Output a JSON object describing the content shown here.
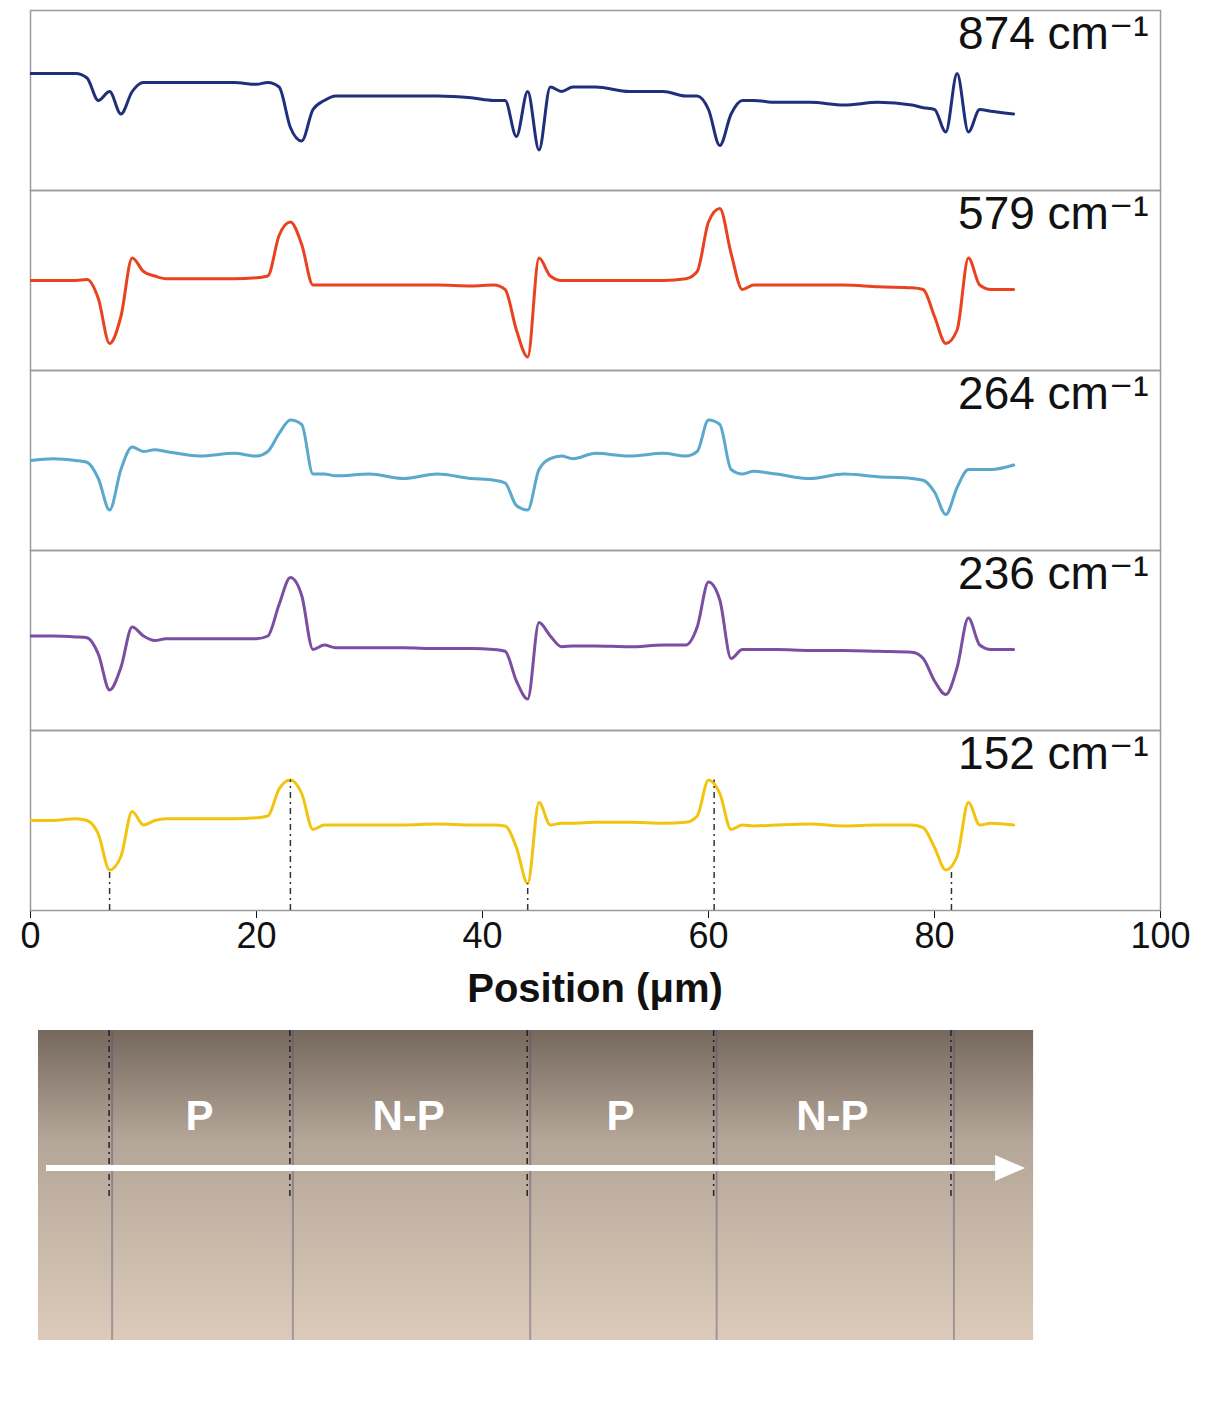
{
  "chart_data": {
    "type": "line",
    "x_label": "Position (μm)",
    "xlim": [
      0,
      100
    ],
    "xticks": [
      0,
      20,
      40,
      60,
      80,
      100
    ],
    "ylim": [
      -1,
      1
    ],
    "tick_labels": "x",
    "x": [
      0,
      2,
      4,
      5,
      6,
      7,
      8,
      9,
      10,
      11,
      12,
      15,
      18,
      20,
      21,
      22,
      23,
      24,
      25,
      26,
      27,
      30,
      33,
      36,
      39,
      41,
      42,
      43,
      44,
      45,
      46,
      47,
      48,
      50,
      53,
      56,
      58,
      59,
      60,
      61,
      62,
      63,
      64,
      66,
      69,
      72,
      75,
      78,
      79,
      80,
      81,
      82,
      83,
      84,
      85,
      87
    ],
    "series": [
      {
        "name": "874 cm⁻¹",
        "color": "#1f2f7a",
        "values": [
          0.3,
          0.3,
          0.3,
          0.25,
          0.0,
          0.1,
          -0.15,
          0.1,
          0.2,
          0.2,
          0.2,
          0.2,
          0.2,
          0.18,
          0.2,
          0.15,
          -0.3,
          -0.45,
          -0.1,
          0.0,
          0.05,
          0.05,
          0.05,
          0.05,
          0.03,
          0.0,
          0.0,
          -0.4,
          0.1,
          -0.55,
          0.15,
          0.1,
          0.15,
          0.15,
          0.1,
          0.1,
          0.05,
          0.05,
          -0.1,
          -0.5,
          -0.15,
          0.0,
          0.0,
          -0.02,
          -0.02,
          -0.05,
          -0.02,
          -0.05,
          -0.08,
          -0.1,
          -0.35,
          0.3,
          -0.35,
          -0.1,
          -0.12,
          -0.15
        ]
      },
      {
        "name": "579 cm⁻¹",
        "color": "#e8431e",
        "values": [
          0,
          0,
          0,
          0.01,
          -0.2,
          -0.7,
          -0.4,
          0.25,
          0.1,
          0.05,
          0.02,
          0.02,
          0.02,
          0.03,
          0.05,
          0.5,
          0.65,
          0.4,
          -0.05,
          -0.05,
          -0.05,
          -0.05,
          -0.05,
          -0.05,
          -0.06,
          -0.05,
          -0.1,
          -0.55,
          -0.85,
          0.25,
          0.05,
          0,
          0,
          0,
          0,
          0,
          0.02,
          0.1,
          0.65,
          0.8,
          0.3,
          -0.1,
          -0.05,
          -0.05,
          -0.05,
          -0.05,
          -0.07,
          -0.08,
          -0.1,
          -0.4,
          -0.7,
          -0.55,
          0.25,
          -0.05,
          -0.1,
          -0.1
        ]
      },
      {
        "name": "264 cm⁻¹",
        "color": "#5aa8cc",
        "values": [
          0,
          0.02,
          0,
          -0.02,
          -0.2,
          -0.55,
          -0.1,
          0.15,
          0.1,
          0.12,
          0.1,
          0.05,
          0.08,
          0.05,
          0.1,
          0.3,
          0.45,
          0.4,
          -0.15,
          -0.15,
          -0.17,
          -0.15,
          -0.2,
          -0.15,
          -0.2,
          -0.22,
          -0.25,
          -0.5,
          -0.55,
          -0.1,
          0.02,
          0.05,
          0.02,
          0.08,
          0.05,
          0.08,
          0.05,
          0.1,
          0.45,
          0.4,
          -0.1,
          -0.15,
          -0.12,
          -0.15,
          -0.2,
          -0.15,
          -0.18,
          -0.2,
          -0.22,
          -0.35,
          -0.6,
          -0.3,
          -0.1,
          -0.1,
          -0.1,
          -0.05
        ]
      },
      {
        "name": "236 cm⁻¹",
        "color": "#7a4ea0",
        "values": [
          0.05,
          0.05,
          0.04,
          0.03,
          -0.15,
          -0.55,
          -0.3,
          0.15,
          0.05,
          0,
          0.02,
          0.02,
          0.02,
          0.02,
          0.05,
          0.4,
          0.7,
          0.5,
          -0.1,
          -0.05,
          -0.08,
          -0.08,
          -0.08,
          -0.09,
          -0.09,
          -0.1,
          -0.12,
          -0.45,
          -0.65,
          0.2,
          0.05,
          -0.07,
          -0.06,
          -0.06,
          -0.07,
          -0.05,
          -0.05,
          0.15,
          0.65,
          0.45,
          -0.2,
          -0.1,
          -0.1,
          -0.1,
          -0.11,
          -0.11,
          -0.12,
          -0.13,
          -0.2,
          -0.45,
          -0.6,
          -0.3,
          0.25,
          -0.05,
          -0.1,
          -0.1
        ]
      },
      {
        "name": "152 cm⁻¹",
        "color": "#f2c40f",
        "values": [
          0,
          0,
          0.02,
          0,
          -0.15,
          -0.55,
          -0.4,
          0.1,
          -0.05,
          0,
          0.02,
          0.02,
          0.02,
          0.03,
          0.05,
          0.35,
          0.45,
          0.3,
          -0.1,
          -0.05,
          -0.05,
          -0.05,
          -0.05,
          -0.04,
          -0.05,
          -0.05,
          -0.06,
          -0.3,
          -0.7,
          0.2,
          -0.05,
          -0.03,
          -0.03,
          -0.02,
          -0.02,
          -0.03,
          -0.02,
          0.05,
          0.45,
          0.3,
          -0.1,
          -0.05,
          -0.06,
          -0.05,
          -0.04,
          -0.06,
          -0.05,
          -0.05,
          -0.08,
          -0.3,
          -0.55,
          -0.4,
          0.2,
          -0.05,
          -0.03,
          -0.05
        ]
      }
    ],
    "boundaries": [
      7,
      23,
      44,
      60.5,
      81.5
    ],
    "regions": [
      "P",
      "N-P",
      "P",
      "N-P"
    ]
  }
}
